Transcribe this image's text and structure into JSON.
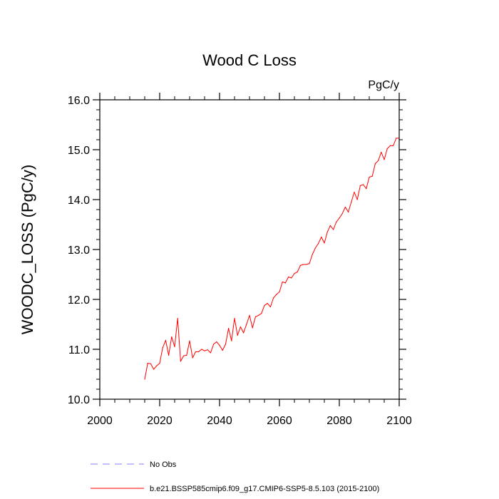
{
  "chart_data": {
    "type": "line",
    "title": "Wood C Loss",
    "units": "PgC/y",
    "xlabel": "",
    "ylabel": "WOODC_LOSS  (PgC/y)",
    "xlim": [
      2000,
      2100
    ],
    "ylim": [
      10.0,
      16.0
    ],
    "x_ticks": [
      2000,
      2020,
      2040,
      2060,
      2080,
      2100
    ],
    "x_tick_labels": [
      "2000",
      "2020",
      "2040",
      "2060",
      "2080",
      "2100"
    ],
    "y_ticks": [
      10.0,
      11.0,
      12.0,
      13.0,
      14.0,
      15.0,
      16.0
    ],
    "y_tick_labels": [
      "10.0",
      "11.0",
      "12.0",
      "13.0",
      "14.0",
      "15.0",
      "16.0"
    ],
    "grid": false,
    "legend_position": "bottom",
    "legend": [
      {
        "label": "No Obs",
        "color": "#8080ff",
        "style": "dashed"
      },
      {
        "label": "b.e21.BSSP585cmip6.f09_g17.CMIP6-SSP5-8.5.103 (2015-2100)",
        "color": "#ff0000",
        "style": "solid"
      }
    ],
    "series": [
      {
        "name": "b.e21.BSSP585cmip6.f09_g17.CMIP6-SSP5-8.5.103 (2015-2100)",
        "color": "#ff0000",
        "x": [
          2015,
          2016,
          2017,
          2018,
          2019,
          2020,
          2021,
          2022,
          2023,
          2024,
          2025,
          2026,
          2027,
          2028,
          2029,
          2030,
          2031,
          2032,
          2033,
          2034,
          2035,
          2036,
          2037,
          2038,
          2039,
          2040,
          2041,
          2042,
          2043,
          2044,
          2045,
          2046,
          2047,
          2048,
          2049,
          2050,
          2051,
          2052,
          2053,
          2054,
          2055,
          2056,
          2057,
          2058,
          2059,
          2060,
          2061,
          2062,
          2063,
          2064,
          2065,
          2066,
          2067,
          2068,
          2069,
          2070,
          2071,
          2072,
          2073,
          2074,
          2075,
          2076,
          2077,
          2078,
          2079,
          2080,
          2081,
          2082,
          2083,
          2084,
          2085,
          2086,
          2087,
          2088,
          2089,
          2090,
          2091,
          2092,
          2093,
          2094,
          2095,
          2096,
          2097,
          2098,
          2099,
          2100
        ],
        "values": [
          10.4,
          10.72,
          10.71,
          10.6,
          10.67,
          10.72,
          11.03,
          11.18,
          10.88,
          11.25,
          11.05,
          11.62,
          10.76,
          10.87,
          10.88,
          11.17,
          10.83,
          10.95,
          10.95,
          11.0,
          10.97,
          10.99,
          10.93,
          11.1,
          11.15,
          11.08,
          10.98,
          11.1,
          11.42,
          11.17,
          11.62,
          11.28,
          11.45,
          11.33,
          11.5,
          11.68,
          11.43,
          11.65,
          11.68,
          11.72,
          11.88,
          11.92,
          11.85,
          12.03,
          12.1,
          12.15,
          12.35,
          12.33,
          12.45,
          12.43,
          12.52,
          12.55,
          12.68,
          12.7,
          12.7,
          12.72,
          12.9,
          13.03,
          13.12,
          13.25,
          13.13,
          13.35,
          13.48,
          13.4,
          13.55,
          13.63,
          13.72,
          13.85,
          13.75,
          13.95,
          14.15,
          14.0,
          14.28,
          14.3,
          14.22,
          14.45,
          14.47,
          14.72,
          14.78,
          14.95,
          14.8,
          15.02,
          15.08,
          15.08,
          15.23,
          15.23
        ]
      }
    ]
  }
}
